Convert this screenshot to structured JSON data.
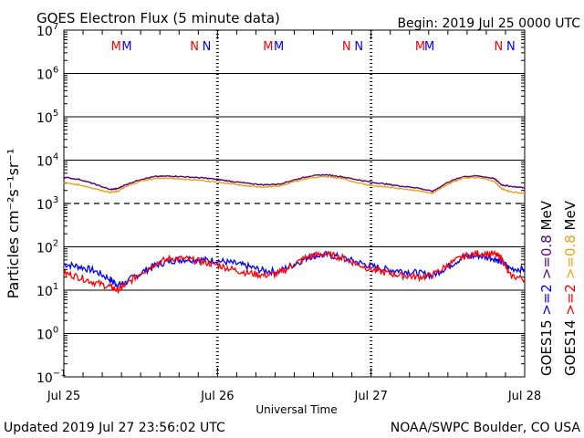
{
  "header": {
    "title": "GOES Electron Flux (5 minute data)",
    "begin": "Begin: 2019 Jul 25 0000 UTC"
  },
  "footer": {
    "updated": "Updated 2019 Jul 27 23:56:02 UTC",
    "credit": "NOAA/SWPC Boulder, CO USA"
  },
  "colors": {
    "goes15_low": "#0000ff",
    "goes14_low": "#ff0000",
    "goes15_high": "#5a007a",
    "goes14_high": "#e8a317"
  },
  "chart_data": {
    "type": "line",
    "title": "GOES Electron Flux (5 minute data)",
    "xlabel": "Universal Time",
    "ylabel": "Particles cm⁻²s⁻¹sr⁻¹",
    "yscale": "log",
    "ylim": [
      0.1,
      10000000
    ],
    "y_ticks": [
      {
        "base": "10",
        "exp": "7"
      },
      {
        "base": "10",
        "exp": "6"
      },
      {
        "base": "10",
        "exp": "5"
      },
      {
        "base": "10",
        "exp": "4"
      },
      {
        "base": "10",
        "exp": "3"
      },
      {
        "base": "10",
        "exp": "2"
      },
      {
        "base": "10",
        "exp": "1"
      },
      {
        "base": "10",
        "exp": "0"
      },
      {
        "base": "10",
        "exp": "−1"
      }
    ],
    "x_range_days": [
      0,
      3
    ],
    "x_tick_labels": [
      "Jul 25",
      "Jul 26",
      "Jul 27",
      "Jul 28"
    ],
    "grid": "horizontal lines at each decade",
    "threshold": {
      "value": 1000,
      "style": "dashed"
    },
    "markers": [
      {
        "label": "M",
        "x": 0.34,
        "color": "#ff0000"
      },
      {
        "label": "M",
        "x": 0.41,
        "color": "#0000ff"
      },
      {
        "label": "N",
        "x": 0.85,
        "color": "#ff0000"
      },
      {
        "label": "N",
        "x": 0.93,
        "color": "#0000ff"
      },
      {
        "label": "M",
        "x": 1.33,
        "color": "#ff0000"
      },
      {
        "label": "M",
        "x": 1.4,
        "color": "#0000ff"
      },
      {
        "label": "N",
        "x": 1.84,
        "color": "#ff0000"
      },
      {
        "label": "N",
        "x": 1.92,
        "color": "#0000ff"
      },
      {
        "label": "M",
        "x": 2.32,
        "color": "#ff0000"
      },
      {
        "label": "M",
        "x": 2.38,
        "color": "#0000ff"
      },
      {
        "label": "N",
        "x": 2.83,
        "color": "#ff0000"
      },
      {
        "label": "N",
        "x": 2.91,
        "color": "#0000ff"
      }
    ],
    "legend": [
      {
        "label": "GOES15",
        "color": "#000000"
      },
      {
        "label": ">=2",
        "color": "#0000ff"
      },
      {
        "label": ">=0.8",
        "color": "#5a007a"
      },
      {
        "label": "MeV",
        "color": "#000000"
      },
      {
        "label": "GOES14",
        "color": "#000000"
      },
      {
        "label": ">=2",
        "color": "#ff0000"
      },
      {
        "label": ">=0.8",
        "color": "#e8a317"
      },
      {
        "label": "MeV",
        "color": "#000000"
      }
    ],
    "series": [
      {
        "color": "#0000ff",
        "x": [
          0,
          0.1,
          0.2,
          0.3,
          0.35,
          0.4,
          0.5,
          0.6,
          0.7,
          0.8,
          0.9,
          1.0,
          1.1,
          1.2,
          1.3,
          1.4,
          1.5,
          1.6,
          1.7,
          1.8,
          1.9,
          2.0,
          2.1,
          2.2,
          2.3,
          2.4,
          2.5,
          2.6,
          2.7,
          2.8,
          2.85,
          2.9,
          3.0
        ],
        "y": [
          40,
          35,
          28,
          18,
          13,
          15,
          25,
          38,
          48,
          52,
          50,
          48,
          42,
          35,
          28,
          27,
          40,
          60,
          66,
          58,
          45,
          36,
          30,
          28,
          25,
          22,
          35,
          58,
          62,
          55,
          45,
          32,
          30
        ]
      },
      {
        "color": "#ff0000",
        "x": [
          0,
          0.1,
          0.2,
          0.3,
          0.35,
          0.4,
          0.5,
          0.6,
          0.7,
          0.8,
          0.9,
          1.0,
          1.1,
          1.2,
          1.3,
          1.4,
          1.5,
          1.6,
          1.7,
          1.8,
          1.9,
          2.0,
          2.1,
          2.2,
          2.3,
          2.4,
          2.5,
          2.6,
          2.7,
          2.8,
          2.85,
          2.9,
          3.0
        ],
        "y": [
          25,
          20,
          15,
          12,
          10,
          13,
          25,
          42,
          55,
          52,
          45,
          38,
          30,
          25,
          22,
          24,
          40,
          62,
          68,
          58,
          42,
          30,
          25,
          22,
          20,
          22,
          38,
          60,
          72,
          68,
          55,
          22,
          18
        ]
      },
      {
        "color": "#5a007a",
        "x": [
          0,
          0.1,
          0.2,
          0.3,
          0.35,
          0.4,
          0.5,
          0.6,
          0.7,
          0.8,
          0.9,
          1.0,
          1.1,
          1.2,
          1.3,
          1.4,
          1.5,
          1.6,
          1.7,
          1.8,
          1.9,
          2.0,
          2.1,
          2.2,
          2.3,
          2.4,
          2.5,
          2.6,
          2.7,
          2.8,
          2.85,
          2.9,
          3.0
        ],
        "y": [
          4000,
          3600,
          2800,
          2100,
          2200,
          2700,
          3600,
          4200,
          4300,
          4100,
          3900,
          3600,
          3200,
          2900,
          2700,
          2800,
          3500,
          4300,
          4600,
          4200,
          3600,
          3100,
          2800,
          2500,
          2300,
          1900,
          3100,
          4200,
          4300,
          3800,
          2700,
          2500,
          2300
        ]
      },
      {
        "color": "#e8a317",
        "x": [
          0,
          0.1,
          0.2,
          0.3,
          0.35,
          0.4,
          0.5,
          0.6,
          0.7,
          0.8,
          0.9,
          1.0,
          1.1,
          1.2,
          1.3,
          1.4,
          1.5,
          1.6,
          1.7,
          1.8,
          1.9,
          2.0,
          2.1,
          2.2,
          2.3,
          2.4,
          2.5,
          2.6,
          2.7,
          2.8,
          2.85,
          2.9,
          3.0
        ],
        "y": [
          3000,
          2700,
          2200,
          1800,
          1900,
          2400,
          3300,
          3800,
          3800,
          3600,
          3400,
          3100,
          2800,
          2500,
          2400,
          2500,
          3200,
          3900,
          4200,
          3800,
          3100,
          2600,
          2400,
          2200,
          2000,
          1700,
          2800,
          3900,
          4000,
          3300,
          2200,
          1900,
          1700
        ]
      }
    ]
  }
}
